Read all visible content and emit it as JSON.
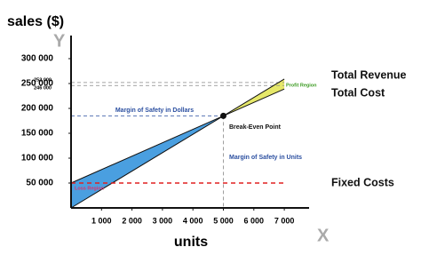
{
  "chart_data": {
    "type": "break-even",
    "y_label": "sales ($)",
    "x_label": "units",
    "y_axis_letter": "Y",
    "x_axis_letter": "X",
    "x": [
      0,
      5000,
      7000
    ],
    "series": [
      {
        "name": "Total Revenue",
        "color": "#111111",
        "values": [
          0,
          185000,
          259000
        ]
      },
      {
        "name": "Total Cost",
        "color": "#111111",
        "values": [
          50000,
          185000,
          239000
        ]
      },
      {
        "name": "Fixed Costs",
        "color": "#e02020",
        "dashed": true,
        "values": [
          50000,
          50000,
          50000
        ]
      }
    ],
    "xlim": [
      0,
      7800
    ],
    "ylim": [
      0,
      330000
    ],
    "xticks": [
      {
        "value": 1000,
        "label": "1 000"
      },
      {
        "value": 2000,
        "label": "2 000"
      },
      {
        "value": 3000,
        "label": "3 000"
      },
      {
        "value": 4000,
        "label": "4 000"
      },
      {
        "value": 5000,
        "label": "5 000"
      },
      {
        "value": 6000,
        "label": "6 000"
      },
      {
        "value": 7000,
        "label": "7 000"
      }
    ],
    "yticks": [
      {
        "value": 50000,
        "label": "50 000"
      },
      {
        "value": 100000,
        "label": "100 000"
      },
      {
        "value": 150000,
        "label": "150 000"
      },
      {
        "value": 200000,
        "label": "200 000"
      },
      {
        "value": 250000,
        "label": "250 000"
      },
      {
        "value": 300000,
        "label": "300 000"
      }
    ],
    "reference_lines": [
      {
        "value": 252000,
        "label": "252 000"
      },
      {
        "value": 246000,
        "label": "246 000"
      }
    ],
    "break_even": {
      "label": "Break-Even Point",
      "x": 5000,
      "y": 185000
    },
    "loss_region": {
      "label": "Loss Region",
      "color": "#4a9fe0"
    },
    "profit_region": {
      "label": "Profit Region",
      "color": "#e6e86a"
    },
    "margin_dollars": "Margin of Safety in Dollars",
    "margin_units": "Margin of Safety in Units"
  }
}
